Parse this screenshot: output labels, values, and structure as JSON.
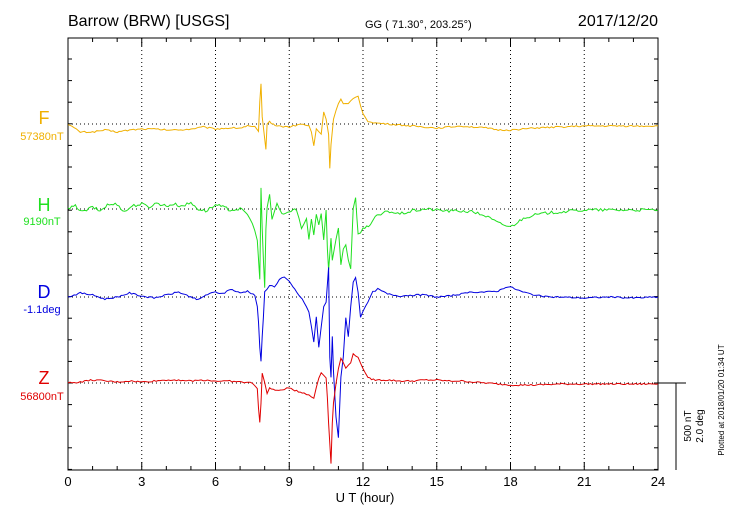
{
  "chart_data": {
    "type": "line",
    "title_station": "Barrow (BRW)  [USGS]",
    "title_coords": "GG ( 71.30°, 203.25°)",
    "title_date": "2017/12/20",
    "xlabel": "U T (hour)",
    "xlim": [
      0,
      24
    ],
    "xticks": [
      "0",
      "3",
      "6",
      "9",
      "12",
      "15",
      "18",
      "21",
      "24"
    ],
    "grid": true,
    "scale_label_1": "500 nT",
    "scale_label_2": "2.0 deg",
    "plotted_note": "Plotted at 2018/01/20 01:34 UT",
    "colors": {
      "F": "#f0b000",
      "H": "#20e020",
      "D": "#0000e0",
      "Z": "#e00000"
    },
    "series": [
      {
        "name": "F",
        "baseline_label": "57380nT",
        "points": [
          [
            0,
            0
          ],
          [
            0.5,
            -8
          ],
          [
            1,
            -8
          ],
          [
            1.5,
            -6
          ],
          [
            2,
            -8
          ],
          [
            2.5,
            -6
          ],
          [
            3,
            -5
          ],
          [
            3.5,
            -5
          ],
          [
            4,
            -6
          ],
          [
            4.5,
            -6
          ],
          [
            5,
            -5
          ],
          [
            5.5,
            -3
          ],
          [
            6,
            -5
          ],
          [
            6.5,
            -4
          ],
          [
            7,
            -4
          ],
          [
            7.3,
            -2
          ],
          [
            7.6,
            -3
          ],
          [
            7.75,
            -8
          ],
          [
            7.8,
            22
          ],
          [
            7.85,
            40
          ],
          [
            7.9,
            8
          ],
          [
            8.0,
            -15
          ],
          [
            8.05,
            -25
          ],
          [
            8.1,
            0
          ],
          [
            8.2,
            2
          ],
          [
            8.5,
            -2
          ],
          [
            9,
            -3
          ],
          [
            9.5,
            0
          ],
          [
            9.8,
            -2
          ],
          [
            9.9,
            -8
          ],
          [
            10.0,
            -22
          ],
          [
            10.1,
            -5
          ],
          [
            10.3,
            -10
          ],
          [
            10.4,
            12
          ],
          [
            10.5,
            5
          ],
          [
            10.6,
            -10
          ],
          [
            10.65,
            -45
          ],
          [
            10.7,
            -20
          ],
          [
            10.8,
            5
          ],
          [
            10.9,
            14
          ],
          [
            11.0,
            20
          ],
          [
            11.1,
            25
          ],
          [
            11.2,
            20
          ],
          [
            11.4,
            20
          ],
          [
            11.6,
            25
          ],
          [
            11.8,
            28
          ],
          [
            12.0,
            10
          ],
          [
            12.2,
            3
          ],
          [
            12.5,
            1
          ],
          [
            13,
            0
          ],
          [
            14,
            -2
          ],
          [
            15,
            -4
          ],
          [
            15.5,
            -3
          ],
          [
            16,
            -2
          ],
          [
            16.5,
            -3
          ],
          [
            17,
            -4
          ],
          [
            17.5,
            -6
          ],
          [
            18,
            -6
          ],
          [
            18.5,
            -5
          ],
          [
            19,
            -4
          ],
          [
            20,
            -3
          ],
          [
            21,
            -2
          ],
          [
            22,
            -2
          ],
          [
            23,
            -2
          ],
          [
            24,
            -2
          ]
        ]
      },
      {
        "name": "H",
        "baseline_label": "9190nT",
        "points": [
          [
            0,
            0
          ],
          [
            0.3,
            3
          ],
          [
            0.6,
            -3
          ],
          [
            1,
            2
          ],
          [
            1.3,
            -2
          ],
          [
            1.6,
            4
          ],
          [
            2,
            5
          ],
          [
            2.3,
            -3
          ],
          [
            2.6,
            3
          ],
          [
            3,
            5
          ],
          [
            3.3,
            2
          ],
          [
            3.6,
            6
          ],
          [
            4,
            3
          ],
          [
            4.3,
            5
          ],
          [
            4.6,
            3
          ],
          [
            5,
            6
          ],
          [
            5.3,
            0
          ],
          [
            5.6,
            -2
          ],
          [
            6,
            4
          ],
          [
            6.3,
            2
          ],
          [
            6.6,
            -1
          ],
          [
            7,
            0
          ],
          [
            7.3,
            -5
          ],
          [
            7.5,
            -15
          ],
          [
            7.7,
            -30
          ],
          [
            7.8,
            -70
          ],
          [
            7.85,
            20
          ],
          [
            7.9,
            -20
          ],
          [
            7.95,
            -50
          ],
          [
            8.0,
            -80
          ],
          [
            8.05,
            -20
          ],
          [
            8.1,
            0
          ],
          [
            8.2,
            15
          ],
          [
            8.3,
            -10
          ],
          [
            8.5,
            5
          ],
          [
            8.7,
            -5
          ],
          [
            9,
            -3
          ],
          [
            9.3,
            0
          ],
          [
            9.5,
            -20
          ],
          [
            9.7,
            -10
          ],
          [
            9.8,
            -30
          ],
          [
            9.9,
            -10
          ],
          [
            10.0,
            -25
          ],
          [
            10.1,
            -5
          ],
          [
            10.2,
            -15
          ],
          [
            10.3,
            -5
          ],
          [
            10.4,
            -30
          ],
          [
            10.5,
            0
          ],
          [
            10.55,
            -40
          ],
          [
            10.6,
            -60
          ],
          [
            10.7,
            -30
          ],
          [
            10.75,
            -50
          ],
          [
            10.8,
            -45
          ],
          [
            10.9,
            -30
          ],
          [
            11.0,
            -20
          ],
          [
            11.1,
            -55
          ],
          [
            11.2,
            -40
          ],
          [
            11.3,
            -35
          ],
          [
            11.4,
            -50
          ],
          [
            11.5,
            -60
          ],
          [
            11.6,
            0
          ],
          [
            11.7,
            10
          ],
          [
            11.75,
            -10
          ],
          [
            11.8,
            -25
          ],
          [
            12.0,
            -20
          ],
          [
            12.3,
            -15
          ],
          [
            12.5,
            -8
          ],
          [
            12.8,
            -5
          ],
          [
            13,
            -2
          ],
          [
            13.5,
            -5
          ],
          [
            14,
            -2
          ],
          [
            14.5,
            0
          ],
          [
            15,
            -1
          ],
          [
            15.5,
            -2
          ],
          [
            16,
            -2
          ],
          [
            16.5,
            -3
          ],
          [
            17,
            -7
          ],
          [
            17.5,
            -14
          ],
          [
            18,
            -18
          ],
          [
            18.3,
            -13
          ],
          [
            18.6,
            -8
          ],
          [
            19,
            -6
          ],
          [
            19.5,
            -4
          ],
          [
            20,
            -3
          ],
          [
            21,
            -1
          ],
          [
            22,
            -1
          ],
          [
            23,
            -1
          ],
          [
            24,
            -1
          ]
        ]
      },
      {
        "name": "D",
        "baseline_label": "-1.1deg",
        "points": [
          [
            0,
            0
          ],
          [
            0.5,
            4
          ],
          [
            1,
            2
          ],
          [
            1.5,
            -2
          ],
          [
            2,
            0
          ],
          [
            2.5,
            4
          ],
          [
            3,
            1
          ],
          [
            3.5,
            -1
          ],
          [
            4,
            2
          ],
          [
            4.5,
            5
          ],
          [
            5,
            0
          ],
          [
            5.3,
            -3
          ],
          [
            5.6,
            2
          ],
          [
            6,
            5
          ],
          [
            6.3,
            3
          ],
          [
            6.6,
            8
          ],
          [
            7,
            4
          ],
          [
            7.3,
            6
          ],
          [
            7.6,
            2
          ],
          [
            7.7,
            -10
          ],
          [
            7.75,
            -25
          ],
          [
            7.8,
            -50
          ],
          [
            7.85,
            -65
          ],
          [
            7.9,
            -40
          ],
          [
            7.95,
            -20
          ],
          [
            8,
            5
          ],
          [
            8.2,
            12
          ],
          [
            8.4,
            10
          ],
          [
            8.6,
            18
          ],
          [
            8.8,
            20
          ],
          [
            9,
            15
          ],
          [
            9.3,
            5
          ],
          [
            9.6,
            -5
          ],
          [
            9.8,
            -15
          ],
          [
            10.0,
            -45
          ],
          [
            10.1,
            -20
          ],
          [
            10.2,
            -50
          ],
          [
            10.3,
            -30
          ],
          [
            10.4,
            -10
          ],
          [
            10.5,
            -5
          ],
          [
            10.6,
            30
          ],
          [
            10.65,
            -60
          ],
          [
            10.7,
            -80
          ],
          [
            10.75,
            -40
          ],
          [
            10.8,
            -75
          ],
          [
            10.9,
            -120
          ],
          [
            11.0,
            -140
          ],
          [
            11.1,
            -80
          ],
          [
            11.2,
            -60
          ],
          [
            11.3,
            -20
          ],
          [
            11.4,
            -40
          ],
          [
            11.5,
            -10
          ],
          [
            11.6,
            15
          ],
          [
            11.7,
            20
          ],
          [
            11.8,
            5
          ],
          [
            11.9,
            -20
          ],
          [
            12.0,
            -15
          ],
          [
            12.2,
            -5
          ],
          [
            12.4,
            5
          ],
          [
            12.6,
            8
          ],
          [
            13,
            3
          ],
          [
            13.5,
            1
          ],
          [
            14,
            2
          ],
          [
            14.5,
            2
          ],
          [
            15,
            0
          ],
          [
            15.5,
            1
          ],
          [
            16,
            3
          ],
          [
            16.5,
            5
          ],
          [
            17,
            5
          ],
          [
            17.5,
            6
          ],
          [
            17.8,
            10
          ],
          [
            18,
            10
          ],
          [
            18.5,
            5
          ],
          [
            19,
            2
          ],
          [
            19.5,
            0
          ],
          [
            20,
            0
          ],
          [
            21,
            -1
          ],
          [
            22,
            0
          ],
          [
            23,
            -1
          ],
          [
            24,
            0
          ]
        ]
      },
      {
        "name": "Z",
        "baseline_label": "56800nT",
        "points": [
          [
            0,
            0
          ],
          [
            0.5,
            1
          ],
          [
            1,
            3
          ],
          [
            1.5,
            2
          ],
          [
            2,
            1
          ],
          [
            2.5,
            2
          ],
          [
            3,
            1
          ],
          [
            3.5,
            2
          ],
          [
            4,
            3
          ],
          [
            4.5,
            3
          ],
          [
            5,
            2
          ],
          [
            5.5,
            3
          ],
          [
            6,
            2
          ],
          [
            6.5,
            2
          ],
          [
            7,
            1
          ],
          [
            7.5,
            0
          ],
          [
            7.7,
            -5
          ],
          [
            7.75,
            -25
          ],
          [
            7.8,
            -40
          ],
          [
            7.85,
            -20
          ],
          [
            7.9,
            10
          ],
          [
            8.0,
            0
          ],
          [
            8.1,
            -10
          ],
          [
            8.2,
            -5
          ],
          [
            8.5,
            -8
          ],
          [
            8.8,
            -6
          ],
          [
            9,
            -5
          ],
          [
            9.3,
            -8
          ],
          [
            9.6,
            -10
          ],
          [
            9.8,
            -12
          ],
          [
            10.0,
            -15
          ],
          [
            10.1,
            -5
          ],
          [
            10.2,
            5
          ],
          [
            10.3,
            10
          ],
          [
            10.4,
            8
          ],
          [
            10.5,
            5
          ],
          [
            10.55,
            -15
          ],
          [
            10.6,
            -40
          ],
          [
            10.65,
            -60
          ],
          [
            10.7,
            -80
          ],
          [
            10.75,
            -40
          ],
          [
            10.8,
            -20
          ],
          [
            10.9,
            0
          ],
          [
            11.0,
            15
          ],
          [
            11.1,
            25
          ],
          [
            11.2,
            20
          ],
          [
            11.3,
            15
          ],
          [
            11.5,
            20
          ],
          [
            11.6,
            30
          ],
          [
            11.8,
            25
          ],
          [
            12.0,
            15
          ],
          [
            12.2,
            5
          ],
          [
            12.5,
            3
          ],
          [
            13,
            3
          ],
          [
            13.5,
            2
          ],
          [
            14,
            2
          ],
          [
            14.5,
            3
          ],
          [
            15,
            3
          ],
          [
            15.5,
            2
          ],
          [
            16,
            2
          ],
          [
            16.5,
            1
          ],
          [
            17,
            0
          ],
          [
            17.5,
            -1
          ],
          [
            18,
            -2
          ],
          [
            18.5,
            -2
          ],
          [
            19,
            -2
          ],
          [
            20,
            -1
          ],
          [
            21,
            -1
          ],
          [
            22,
            -1
          ],
          [
            23,
            -1
          ],
          [
            24,
            -1
          ]
        ]
      }
    ]
  }
}
